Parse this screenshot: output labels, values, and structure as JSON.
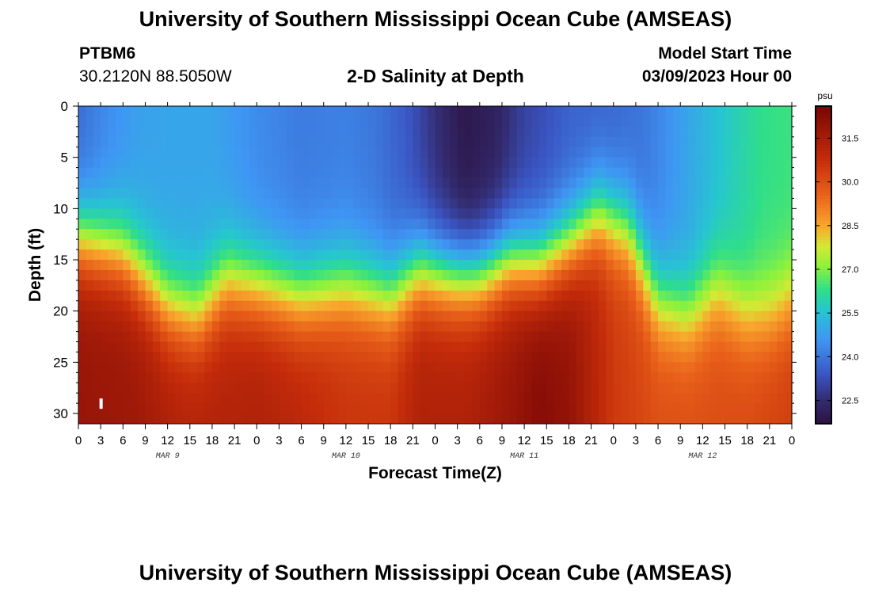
{
  "header": {
    "title": "University of Southern Mississippi Ocean Cube (AMSEAS)",
    "station_id": "PTBM6",
    "station_coords": "30.2120N  88.5050W",
    "plot_title": "2-D Salinity at Depth",
    "model_start_label": "Model Start Time",
    "model_start_value": "03/09/2023 Hour 00"
  },
  "footer": {
    "title": "University of Southern Mississippi Ocean Cube (AMSEAS)"
  },
  "chart_data": {
    "type": "heatmap",
    "title": "2-D Salinity at Depth",
    "xlabel": "Forecast Time(Z)",
    "ylabel": "Depth (ft)",
    "x_range_hours": [
      0,
      96
    ],
    "ylim": [
      0,
      31
    ],
    "x_tick_labels": [
      "0",
      "3",
      "6",
      "9",
      "12",
      "15",
      "18",
      "21",
      "0",
      "3",
      "6",
      "9",
      "12",
      "15",
      "18",
      "21",
      "0",
      "3",
      "6",
      "9",
      "12",
      "15",
      "18",
      "21",
      "0",
      "3",
      "6",
      "9",
      "12",
      "15",
      "18",
      "21",
      "0"
    ],
    "date_labels": [
      {
        "label": "MAR 9",
        "hour": 12
      },
      {
        "label": "MAR 10",
        "hour": 36
      },
      {
        "label": "MAR 11",
        "hour": 60
      },
      {
        "label": "MAR 12",
        "hour": 84
      }
    ],
    "y_ticks": [
      0,
      5,
      10,
      15,
      20,
      25,
      30
    ],
    "colorbar": {
      "unit": "psu",
      "range": [
        21.7,
        32.6
      ],
      "ticks": [
        "22.5",
        "24.0",
        "25.5",
        "27.0",
        "28.5",
        "30.0",
        "31.5"
      ]
    },
    "colormap": [
      {
        "v": 21.7,
        "color": "#2a1240"
      },
      {
        "v": 22.5,
        "color": "#332a6e"
      },
      {
        "v": 23.4,
        "color": "#3a55c2"
      },
      {
        "v": 24.6,
        "color": "#3f96f4"
      },
      {
        "v": 25.6,
        "color": "#26c6d0"
      },
      {
        "v": 26.3,
        "color": "#2fde8a"
      },
      {
        "v": 27.1,
        "color": "#8cf23c"
      },
      {
        "v": 27.8,
        "color": "#d4e934"
      },
      {
        "v": 28.5,
        "color": "#f9a62d"
      },
      {
        "v": 29.6,
        "color": "#e9601a"
      },
      {
        "v": 30.8,
        "color": "#c42c0a"
      },
      {
        "v": 32.6,
        "color": "#7a0606"
      }
    ],
    "mixed_layer_depth_ft": {
      "hours": [
        0,
        6,
        12,
        16,
        20,
        24,
        30,
        36,
        42,
        46,
        50,
        54,
        58,
        62,
        66,
        70,
        74,
        78,
        82,
        86,
        90,
        93,
        96
      ],
      "depth": [
        13,
        14.5,
        19.5,
        20.5,
        17,
        17.5,
        18.5,
        17.5,
        18.5,
        16,
        16.5,
        16.5,
        15,
        15.5,
        13.5,
        10.5,
        12,
        19,
        20.5,
        18,
        20.5,
        20.5,
        19
      ]
    },
    "surface_profile": {
      "hours": [
        0,
        4,
        8,
        12,
        18,
        24,
        30,
        36,
        40,
        44,
        48,
        52,
        56,
        60,
        66,
        72,
        76,
        80,
        84,
        88,
        92,
        96
      ],
      "salinity": [
        23.8,
        24.4,
        24.8,
        24.9,
        24.9,
        24.4,
        24.1,
        24.2,
        24.0,
        23.5,
        22.6,
        21.9,
        22.2,
        23.0,
        23.6,
        23.7,
        24.0,
        24.6,
        25.2,
        25.8,
        26.3,
        26.4
      ]
    },
    "bottom_profile": {
      "hours": [
        0,
        8,
        14,
        20,
        24,
        30,
        36,
        42,
        46,
        52,
        58,
        62,
        66,
        72,
        78,
        84,
        90,
        96
      ],
      "salinity": [
        31.9,
        31.7,
        31.2,
        31.2,
        31.3,
        31.0,
        30.6,
        30.6,
        31.3,
        31.3,
        31.8,
        32.3,
        32.0,
        30.5,
        30.0,
        30.0,
        30.1,
        30.4
      ]
    },
    "marker": {
      "symbol": "white-bar",
      "hour": 3,
      "depth_ft": 29
    }
  }
}
